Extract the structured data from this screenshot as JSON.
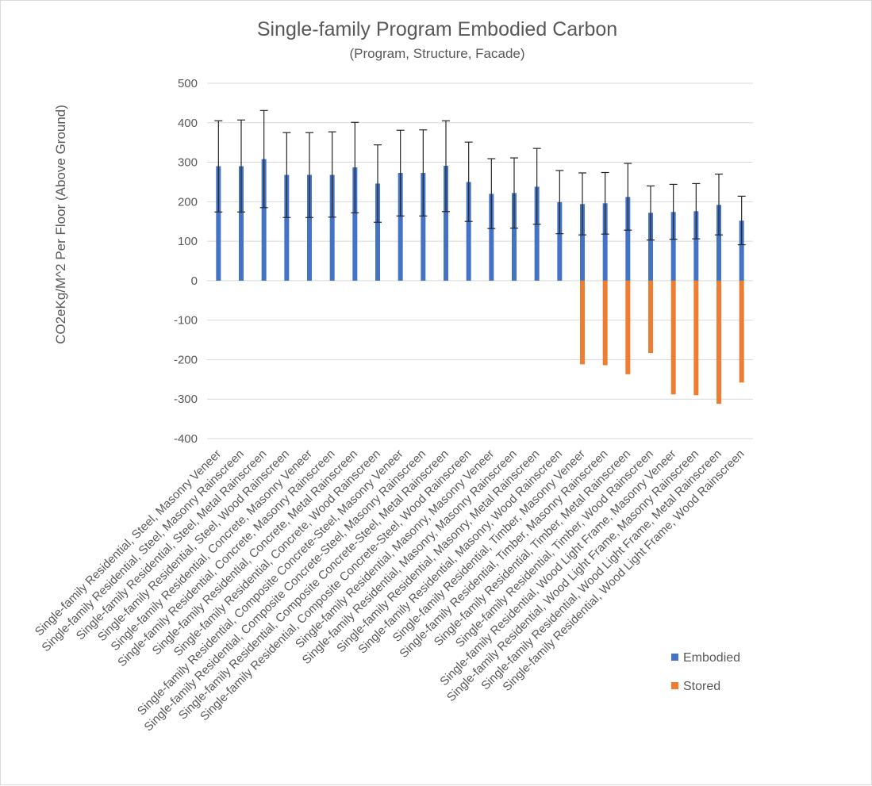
{
  "chart_data": {
    "type": "bar",
    "title": "Single-family Program Embodied Carbon",
    "subtitle": "(Program, Structure, Facade)",
    "xlabel": "",
    "ylabel": "CO2eKg/M^2 Per Floor (Above Ground)",
    "ylim": [
      -400,
      500
    ],
    "yticks": [
      "500",
      "400",
      "300",
      "200",
      "100",
      "0",
      "-100",
      "-200",
      "-300",
      "-400"
    ],
    "grid": true,
    "legend_position": "bottom-right",
    "categories": [
      "Single-family Residential, Steel, Masonry Veneer",
      "Single-family Residential, Steel, Masonry Rainscreen",
      "Single-family Residential, Steel, Metal Rainscreen",
      "Single-family Residential, Steel, Wood Rainscreen",
      "Single-family Residential, Concrete, Masonry Veneer",
      "Single-family Residential, Concrete, Masonry Rainscreen",
      "Single-family Residential, Concrete, Metal Rainscreen",
      "Single-family Residential, Concrete, Wood Rainscreen",
      "Single-family Residential, Composite Concrete-Steel, Masonry Veneer",
      "Single-family Residential, Composite Concrete-Steel, Masonry Rainscreen",
      "Single-family Residential, Composite Concrete-Steel, Metal Rainscreen",
      "Single-family Residential, Composite Concrete-Steel, Wood Rainscreen",
      "Single-family Residential, Masonry, Masonry Veneer",
      "Single-family Residential, Masonry, Masonry Rainscreen",
      "Single-family Residential, Masonry, Metal Rainscreen",
      "Single-family Residential, Masonry, Wood Rainscreen",
      "Single-family Residential, Timber, Masonry Veneer",
      "Single-family Residential, Timber, Masonry Rainscreen",
      "Single-family Residential, Timber, Metal Rainscreen",
      "Single-family Residential, Timber, Wood Rainscreen",
      "Single-family Residential, Wood Light Frame, Masonry Veneer",
      "Single-family Residential, Wood Light Frame, Masonry Rainscreen",
      "Single-family Residential, Wood Light Frame, Metal Rainscreen",
      "Single-family Residential, Wood Light Frame, Wood Rainscreen"
    ],
    "series": [
      {
        "name": "Embodied",
        "color": "#4472c4",
        "values": [
          290,
          290,
          308,
          268,
          268,
          268,
          287,
          246,
          273,
          273,
          291,
          250,
          220,
          222,
          238,
          199,
          194,
          196,
          212,
          172,
          174,
          176,
          192,
          152
        ],
        "error_high": [
          405,
          407,
          431,
          375,
          375,
          377,
          401,
          344,
          381,
          382,
          405,
          351,
          309,
          311,
          335,
          279,
          273,
          274,
          297,
          240,
          244,
          246,
          270,
          214
        ],
        "error_low": [
          174,
          174,
          185,
          160,
          160,
          161,
          172,
          148,
          164,
          164,
          175,
          150,
          132,
          133,
          143,
          119,
          116,
          118,
          128,
          103,
          105,
          106,
          116,
          91
        ]
      },
      {
        "name": "Stored",
        "color": "#ed7d31",
        "values": [
          0,
          0,
          0,
          0,
          0,
          0,
          0,
          0,
          0,
          0,
          0,
          0,
          0,
          0,
          0,
          0,
          -212,
          -214,
          -237,
          -183,
          -288,
          -290,
          -312,
          -258
        ]
      }
    ]
  }
}
